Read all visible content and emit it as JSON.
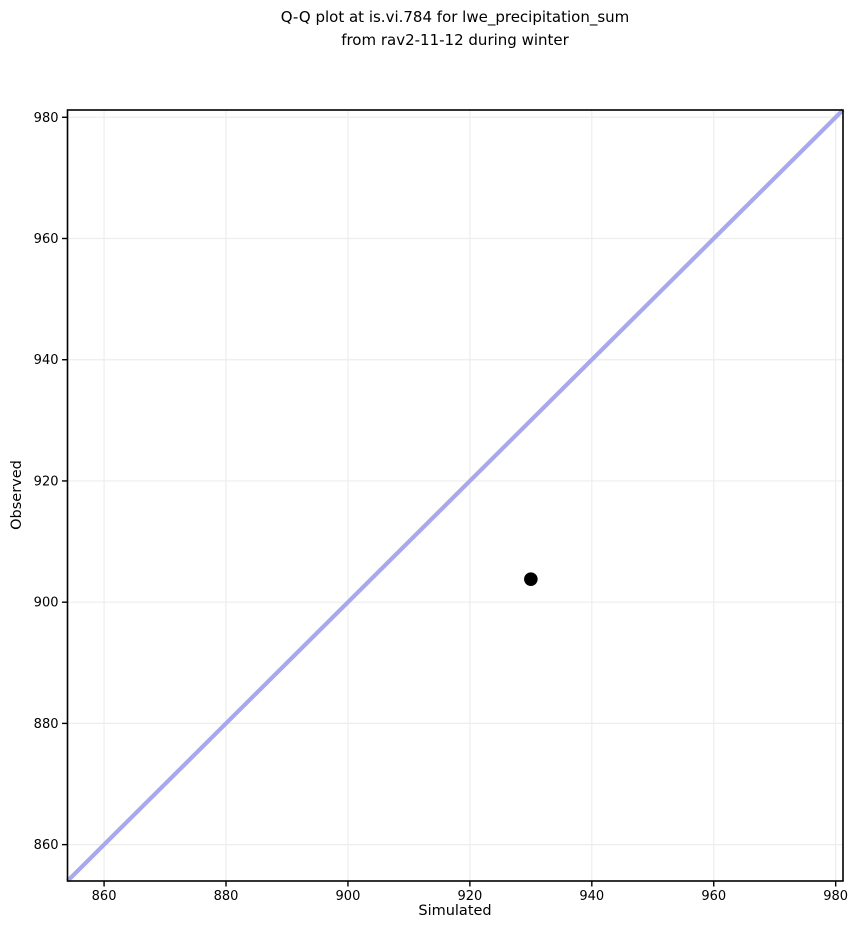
{
  "title": {
    "line1": "Q-Q plot at is.vi.784 for lwe_precipitation_sum",
    "line2": "from rav2-11-12 during winter"
  },
  "chart_data": {
    "type": "scatter",
    "title": "Q-Q plot at is.vi.784 for lwe_precipitation_sum\nfrom rav2-11-12 during winter",
    "xlabel": "Simulated",
    "ylabel": "Observed",
    "xlim": [
      854,
      981.2
    ],
    "ylim": [
      854,
      981.2
    ],
    "xticks": [
      860,
      880,
      900,
      920,
      940,
      960,
      980
    ],
    "yticks": [
      860,
      880,
      900,
      920,
      940,
      960,
      980
    ],
    "grid": true,
    "legend": false,
    "series": [
      {
        "name": "observed-vs-simulated-quantiles",
        "kind": "scatter",
        "color": "#000000",
        "marker_radius": 6.8,
        "points": [
          {
            "x": 930,
            "y": 903.8
          }
        ]
      },
      {
        "name": "identity-line",
        "kind": "line",
        "color": "#a8a8ec",
        "width": 4.2,
        "points": [
          {
            "x": 854,
            "y": 854
          },
          {
            "x": 981.2,
            "y": 981.2
          }
        ]
      }
    ],
    "colors": {
      "grid": "#ededed",
      "axis": "#000000",
      "background": "#ffffff",
      "identity_line": "#a8a8ec",
      "marker": "#000000"
    }
  }
}
